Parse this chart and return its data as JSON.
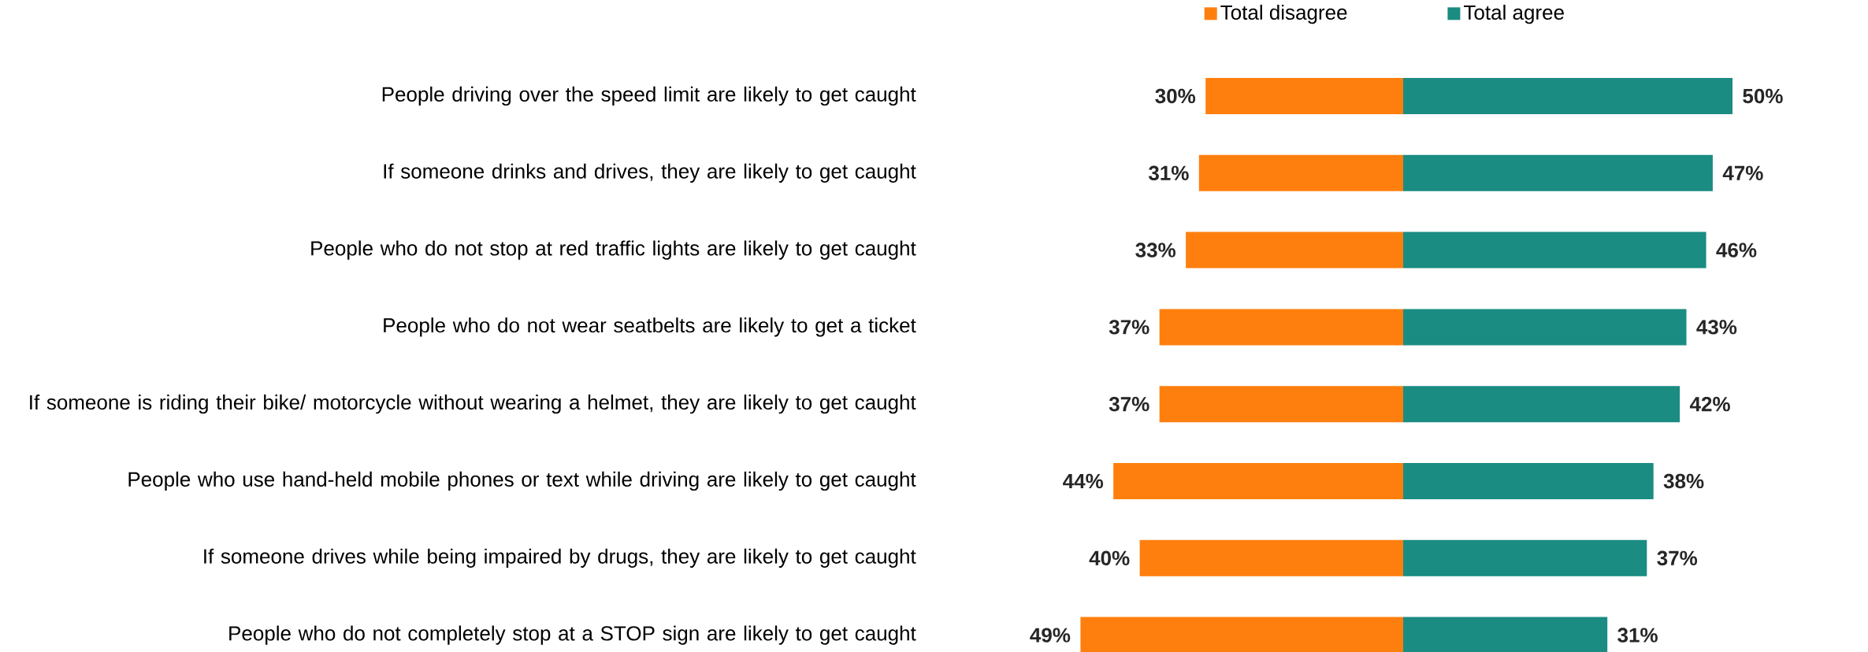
{
  "chart_data": [
    {
      "type": "bar",
      "orientation": "horizontal",
      "categories": [
        "People driving over the speed limit are likely to get caught",
        "If someone drinks and drives, they are likely to get caught",
        "People who do not stop at red traffic lights are likely to get caught",
        "People who do not wear seatbelts are likely to get a ticket",
        "If someone is riding their bike/ motorcycle without wearing a helmet, they are likely to get caught",
        "People who use hand-held mobile phones or text while driving are likely to get caught",
        "If someone drives while being impaired by drugs, they are likely to get caught",
        "People who do not completely stop at a STOP sign are likely to get caught"
      ],
      "series": [
        {
          "name": "Total disagree",
          "color": "#ff7f0e",
          "values": [
            30,
            31,
            33,
            37,
            37,
            44,
            40,
            49
          ],
          "value_labels": [
            "30%",
            "31%",
            "33%",
            "37%",
            "37%",
            "44%",
            "40%",
            "49%"
          ]
        }
      ],
      "tick_labels": "y",
      "legend": "top right"
    },
    {
      "type": "bar",
      "orientation": "horizontal",
      "categories": [
        null,
        null,
        null,
        null,
        null,
        null,
        null,
        null
      ],
      "series": [
        {
          "name": "Total agree",
          "color": "#1a8c82",
          "values": [
            50,
            47,
            46,
            43,
            42,
            38,
            37,
            31
          ],
          "value_labels": [
            "50%",
            "47%",
            "46%",
            "43%",
            "42%",
            "38%",
            "37%",
            "31%"
          ]
        }
      ],
      "tick_labels": false,
      "legend": "top left"
    }
  ]
}
